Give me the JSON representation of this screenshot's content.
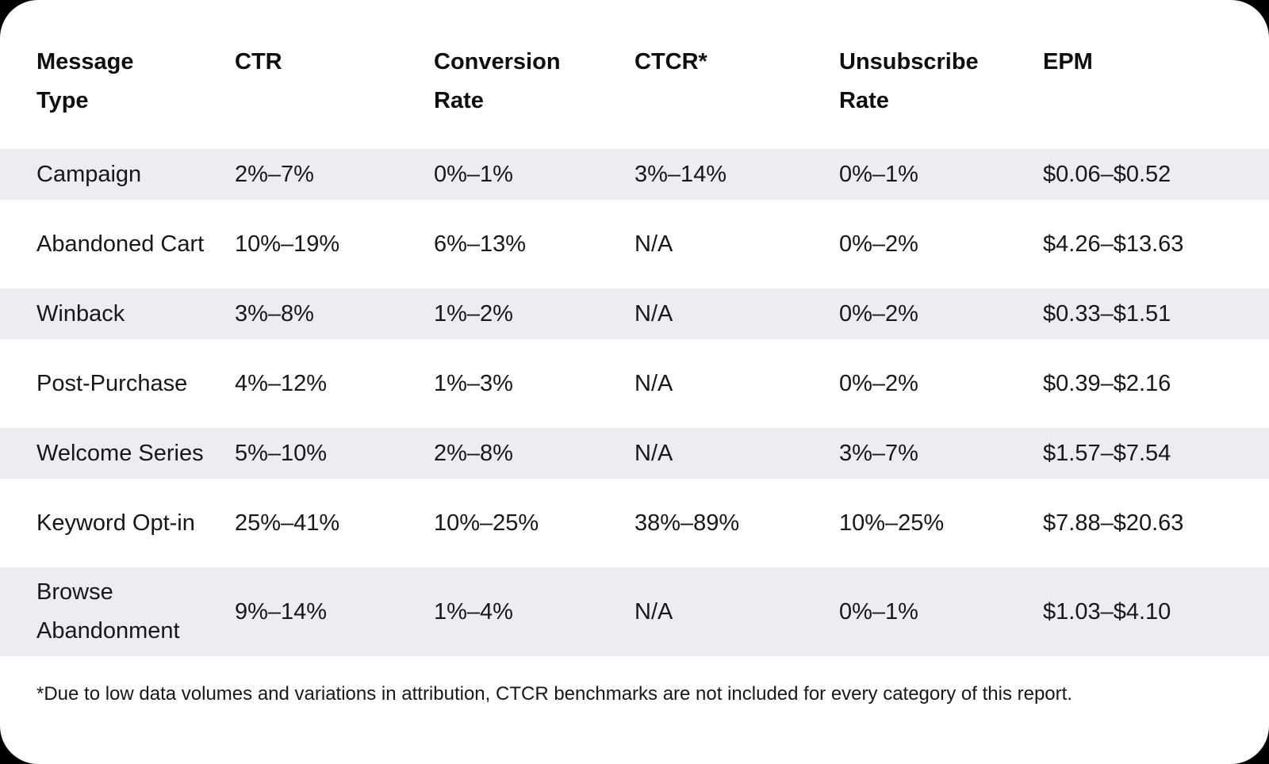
{
  "colors": {
    "page_background": "#000000",
    "card_background": "#FFFFFF",
    "row_stripe": "#ECECF1",
    "text": "#17171C",
    "header_text": "#0E0E12"
  },
  "chart_data": {
    "type": "table",
    "title": "",
    "columns": [
      "Message Type",
      "CTR",
      "Conversion Rate",
      "CTCR*",
      "Unsubscribe Rate",
      "EPM"
    ],
    "rows": [
      [
        "Campaign",
        "2%–7%",
        "0%–1%",
        "3%–14%",
        "0%–1%",
        "$0.06–$0.52"
      ],
      [
        "Abandoned Cart",
        "10%–19%",
        "6%–13%",
        "N/A",
        "0%–2%",
        "$4.26–$13.63"
      ],
      [
        "Winback",
        "3%–8%",
        "1%–2%",
        "N/A",
        "0%–2%",
        "$0.33–$1.51"
      ],
      [
        "Post-Purchase",
        "4%–12%",
        "1%–3%",
        "N/A",
        "0%–2%",
        "$0.39–$2.16"
      ],
      [
        "Welcome Series",
        "5%–10%",
        "2%–8%",
        "N/A",
        "3%–7%",
        "$1.57–$7.54"
      ],
      [
        "Keyword Opt-in",
        "25%–41%",
        "10%–25%",
        "38%–89%",
        "10%–25%",
        "$7.88–$20.63"
      ],
      [
        "Browse Abandonment",
        "9%–14%",
        "1%–4%",
        "N/A",
        "0%–1%",
        "$1.03–$4.10"
      ]
    ],
    "footnote": "*Due to low data volumes and variations in attribution, CTCR benchmarks are not included for every category of this report.",
    "layout": {
      "striped_rows": "odd",
      "grid": "off",
      "legend": "none"
    }
  }
}
